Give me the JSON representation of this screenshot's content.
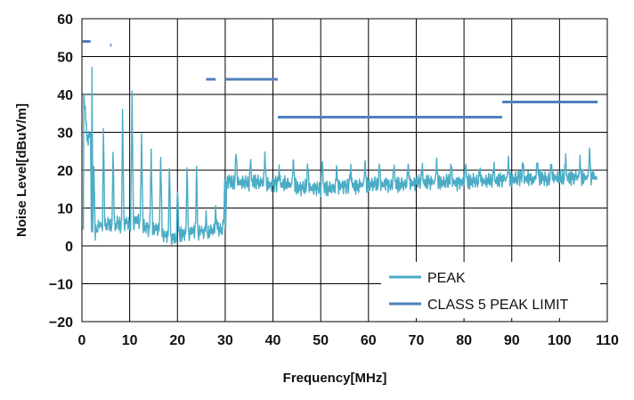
{
  "chart_data": {
    "type": "line",
    "title": "",
    "xlabel": "Frequency[MHz]",
    "ylabel": "Noise Level[dBuV/m]",
    "xlim": [
      0,
      110
    ],
    "ylim": [
      -20,
      60
    ],
    "grid": true,
    "legend_position": "bottom-right",
    "xticks": [
      0,
      10,
      20,
      30,
      40,
      50,
      60,
      70,
      80,
      90,
      100,
      110
    ],
    "yticks": [
      -20,
      -10,
      0,
      10,
      20,
      30,
      40,
      50,
      60
    ],
    "series": [
      {
        "name": "PEAK",
        "color": "#4BACC6",
        "style": "noise",
        "points": [
          [
            0.3,
            5
          ],
          [
            0.4,
            40
          ],
          [
            0.7,
            35
          ],
          [
            1.0,
            30
          ],
          [
            1.3,
            28
          ],
          [
            1.6,
            29
          ],
          [
            1.8,
            30
          ],
          [
            2.0,
            4
          ],
          [
            2.1,
            47.5
          ],
          [
            2.3,
            5
          ],
          [
            2.5,
            22
          ],
          [
            2.8,
            3
          ],
          [
            3.2,
            5
          ],
          [
            3.8,
            6
          ],
          [
            4.3,
            5
          ],
          [
            4.5,
            33
          ],
          [
            4.8,
            5
          ],
          [
            5.5,
            6
          ],
          [
            6.3,
            5
          ],
          [
            6.5,
            26
          ],
          [
            6.8,
            5
          ],
          [
            7.5,
            6
          ],
          [
            8.3,
            5
          ],
          [
            8.5,
            35.5
          ],
          [
            8.8,
            6
          ],
          [
            9.5,
            6
          ],
          [
            10.2,
            5
          ],
          [
            10.5,
            39
          ],
          [
            10.8,
            6
          ],
          [
            11.5,
            7
          ],
          [
            12.2,
            6
          ],
          [
            12.5,
            28
          ],
          [
            12.8,
            5
          ],
          [
            13.5,
            5
          ],
          [
            14.2,
            4
          ],
          [
            14.5,
            25.5
          ],
          [
            14.8,
            4
          ],
          [
            15.5,
            5
          ],
          [
            16.2,
            4
          ],
          [
            16.5,
            24.5
          ],
          [
            16.8,
            3
          ],
          [
            17.5,
            3
          ],
          [
            18.1,
            3
          ],
          [
            18.3,
            21
          ],
          [
            18.6,
            2
          ],
          [
            19.3,
            2
          ],
          [
            19.8,
            2
          ],
          [
            20.0,
            16
          ],
          [
            20.3,
            3
          ],
          [
            21.2,
            3
          ],
          [
            21.8,
            4
          ],
          [
            22.0,
            21
          ],
          [
            22.3,
            3
          ],
          [
            23.0,
            4
          ],
          [
            23.8,
            4
          ],
          [
            24.0,
            20
          ],
          [
            24.3,
            3
          ],
          [
            25.0,
            4
          ],
          [
            25.8,
            3
          ],
          [
            26.0,
            8
          ],
          [
            26.3,
            3
          ],
          [
            27.0,
            4
          ],
          [
            27.8,
            4
          ],
          [
            28.0,
            10
          ],
          [
            28.3,
            5
          ],
          [
            29.0,
            4
          ],
          [
            29.7,
            5
          ],
          [
            29.9,
            17
          ],
          [
            30.1,
            5
          ],
          [
            30.3,
            17
          ],
          [
            31.0,
            17.5
          ],
          [
            31.5,
            16.5
          ],
          [
            32.0,
            17
          ],
          [
            32.3,
            24.5
          ],
          [
            32.6,
            17
          ],
          [
            33.5,
            16.5
          ],
          [
            34.5,
            17
          ],
          [
            35.0,
            16.5
          ],
          [
            35.3,
            22
          ],
          [
            35.6,
            17
          ],
          [
            36.5,
            17
          ],
          [
            37.5,
            16.5
          ],
          [
            38.0,
            17
          ],
          [
            38.3,
            24
          ],
          [
            38.6,
            16.5
          ],
          [
            39.5,
            16
          ],
          [
            40.5,
            16.5
          ],
          [
            41.0,
            16
          ],
          [
            41.3,
            21
          ],
          [
            41.6,
            16
          ],
          [
            42.5,
            16.5
          ],
          [
            43.5,
            16
          ],
          [
            44.0,
            16
          ],
          [
            44.3,
            23
          ],
          [
            44.6,
            16
          ],
          [
            45.5,
            15
          ],
          [
            46.5,
            15.5
          ],
          [
            47.0,
            16
          ],
          [
            47.3,
            21
          ],
          [
            47.6,
            15.5
          ],
          [
            48.5,
            15
          ],
          [
            49.5,
            15.5
          ],
          [
            50.0,
            15
          ],
          [
            50.3,
            22
          ],
          [
            50.6,
            15.5
          ],
          [
            51.5,
            15
          ],
          [
            52.5,
            15.5
          ],
          [
            53.0,
            15
          ],
          [
            53.3,
            21
          ],
          [
            53.6,
            15.5
          ],
          [
            54.5,
            16
          ],
          [
            55.5,
            15.5
          ],
          [
            56.0,
            16
          ],
          [
            56.3,
            21
          ],
          [
            56.6,
            16
          ],
          [
            57.5,
            15.5
          ],
          [
            58.5,
            16
          ],
          [
            59.0,
            16
          ],
          [
            59.3,
            22
          ],
          [
            59.6,
            16
          ],
          [
            60.5,
            16
          ],
          [
            61.5,
            16.5
          ],
          [
            62.0,
            16
          ],
          [
            62.3,
            21
          ],
          [
            62.6,
            16
          ],
          [
            63.5,
            16.5
          ],
          [
            64.5,
            16
          ],
          [
            65.0,
            16.5
          ],
          [
            65.3,
            21
          ],
          [
            65.6,
            16.5
          ],
          [
            66.5,
            16
          ],
          [
            67.5,
            16.5
          ],
          [
            68.0,
            16.5
          ],
          [
            68.3,
            22
          ],
          [
            68.6,
            16.5
          ],
          [
            69.5,
            16.5
          ],
          [
            70.5,
            17
          ],
          [
            71.0,
            16.5
          ],
          [
            71.3,
            21
          ],
          [
            71.6,
            16.5
          ],
          [
            72.5,
            17
          ],
          [
            73.5,
            16.5
          ],
          [
            74.0,
            17
          ],
          [
            74.3,
            22
          ],
          [
            74.6,
            17
          ],
          [
            75.5,
            16.5
          ],
          [
            76.5,
            17
          ],
          [
            77.0,
            17
          ],
          [
            77.3,
            21
          ],
          [
            77.6,
            17
          ],
          [
            78.5,
            16.5
          ],
          [
            79.5,
            17
          ],
          [
            80.0,
            17
          ],
          [
            80.3,
            22
          ],
          [
            80.6,
            17
          ],
          [
            81.5,
            17
          ],
          [
            82.5,
            17.5
          ],
          [
            83.0,
            17
          ],
          [
            83.3,
            21
          ],
          [
            83.6,
            17
          ],
          [
            84.5,
            17
          ],
          [
            85.5,
            17.5
          ],
          [
            86.0,
            17
          ],
          [
            86.3,
            21
          ],
          [
            86.6,
            17
          ],
          [
            87.5,
            17.5
          ],
          [
            88.5,
            17.5
          ],
          [
            89.0,
            17.5
          ],
          [
            89.3,
            22
          ],
          [
            89.6,
            17.5
          ],
          [
            90.5,
            17.5
          ],
          [
            91.5,
            18
          ],
          [
            92.0,
            17.5
          ],
          [
            92.3,
            22
          ],
          [
            92.6,
            17.5
          ],
          [
            93.5,
            18
          ],
          [
            94.5,
            17.5
          ],
          [
            95.0,
            18
          ],
          [
            95.3,
            23
          ],
          [
            95.6,
            18
          ],
          [
            96.5,
            18
          ],
          [
            97.5,
            17.5
          ],
          [
            98.0,
            18
          ],
          [
            98.3,
            22
          ],
          [
            98.6,
            18
          ],
          [
            99.5,
            18
          ],
          [
            100.5,
            18
          ],
          [
            101.0,
            18
          ],
          [
            101.3,
            23
          ],
          [
            101.6,
            18
          ],
          [
            102.5,
            18
          ],
          [
            103.5,
            18
          ],
          [
            104.0,
            18
          ],
          [
            104.3,
            22
          ],
          [
            104.6,
            18
          ],
          [
            105.5,
            18
          ],
          [
            106.0,
            18
          ],
          [
            106.3,
            25
          ],
          [
            106.6,
            18
          ],
          [
            107.2,
            18.5
          ],
          [
            107.8,
            17.5
          ]
        ]
      },
      {
        "name": "CLASS 5 PEAK LIMIT",
        "color": "#4F81BD",
        "style": "step",
        "segments": [
          {
            "x": [
              0.15,
              1.8
            ],
            "y": 54
          },
          {
            "x": [
              5.9,
              6.2
            ],
            "y": 53
          },
          {
            "x": [
              26.0,
              28.0
            ],
            "y": 44
          },
          {
            "x": [
              30.0,
              41.0
            ],
            "y": 44
          },
          {
            "x": [
              41.0,
              88.0
            ],
            "y": 34
          },
          {
            "x": [
              88.0,
              108.0
            ],
            "y": 38
          }
        ]
      }
    ]
  }
}
